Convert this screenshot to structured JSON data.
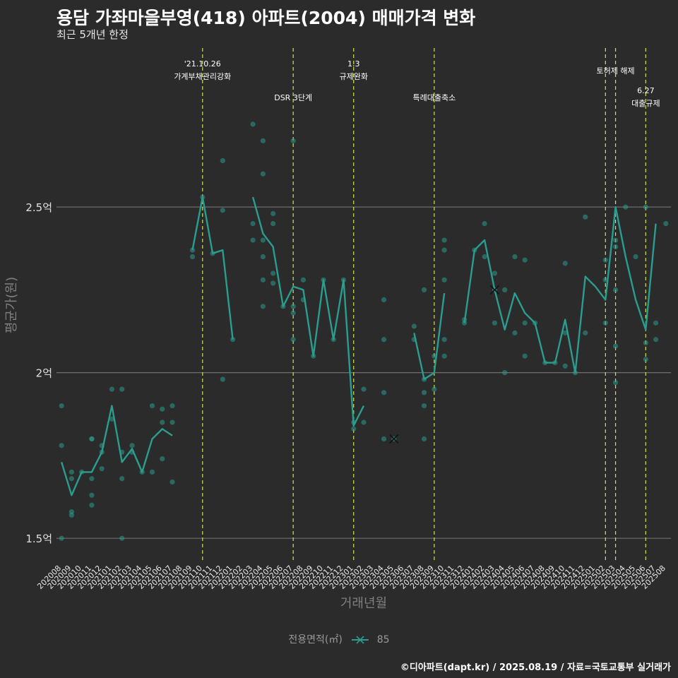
{
  "title": "용담 가좌마을부영(418) 아파트(2004) 매매가격 변화",
  "subtitle": "최근 5개년 한정",
  "caption": "©디아파트(dapt.kr) / 2025.08.19 / 자료=국토교통부 실거래가",
  "colors": {
    "background": "#2b2b2b",
    "series": "#2a9d8f",
    "event_line": "#d4e157",
    "grid": "#6e6e6e",
    "text": "#ffffff",
    "axis_title": "#7f7f7f"
  },
  "chart_data": {
    "type": "line",
    "xlabel": "거래년월",
    "ylabel": "평균가(원)",
    "ylim": [
      1.43,
      2.98
    ],
    "yticks": [
      {
        "value": 1.5,
        "label": "1.5억"
      },
      {
        "value": 2.0,
        "label": "2억"
      },
      {
        "value": 2.5,
        "label": "2.5억"
      }
    ],
    "grid": true,
    "legend": {
      "title": "전용면적(㎡)",
      "position": "bottom",
      "entries": [
        "85"
      ]
    },
    "categories": [
      "202008",
      "202009",
      "202010",
      "202011",
      "202012",
      "202101",
      "202102",
      "202103",
      "202104",
      "202105",
      "202106",
      "202107",
      "202108",
      "202109",
      "202110",
      "202111",
      "202112",
      "202201",
      "202202",
      "202203",
      "202204",
      "202205",
      "202206",
      "202207",
      "202208",
      "202209",
      "202210",
      "202211",
      "202212",
      "202301",
      "202302",
      "202303",
      "202304",
      "202305",
      "202306",
      "202307",
      "202308",
      "202309",
      "202310",
      "202311",
      "202312",
      "202401",
      "202402",
      "202403",
      "202404",
      "202405",
      "202406",
      "202407",
      "202408",
      "202409",
      "202410",
      "202411",
      "202412",
      "202501",
      "202502",
      "202503",
      "202504",
      "202505",
      "202506",
      "202507",
      "202508"
    ],
    "series": [
      {
        "name": "85",
        "values": [
          1.73,
          1.63,
          1.7,
          1.7,
          1.76,
          1.9,
          1.73,
          1.77,
          1.7,
          1.8,
          1.83,
          1.81,
          null,
          2.37,
          2.53,
          2.36,
          2.37,
          2.1,
          null,
          2.53,
          2.42,
          2.38,
          2.2,
          2.26,
          2.25,
          2.05,
          2.28,
          2.1,
          2.28,
          1.84,
          1.9,
          null,
          null,
          1.8,
          null,
          2.12,
          1.98,
          2.0,
          2.24,
          null,
          2.15,
          2.37,
          2.4,
          2.25,
          2.13,
          2.24,
          2.18,
          2.15,
          2.03,
          2.03,
          2.16,
          2.0,
          2.29,
          2.26,
          2.22,
          2.5,
          2.35,
          2.22,
          2.13,
          2.45,
          null
        ],
        "isolated_markers": [
          {
            "x": "202305",
            "y": 1.8
          },
          {
            "x": "202403",
            "y": 2.25
          }
        ]
      }
    ],
    "scatter_points": [
      {
        "x": "202008",
        "y": 1.9
      },
      {
        "x": "202008",
        "y": 1.78
      },
      {
        "x": "202008",
        "y": 1.5
      },
      {
        "x": "202009",
        "y": 1.7
      },
      {
        "x": "202009",
        "y": 1.68
      },
      {
        "x": "202009",
        "y": 1.58
      },
      {
        "x": "202009",
        "y": 1.57
      },
      {
        "x": "202010",
        "y": 1.7
      },
      {
        "x": "202011",
        "y": 1.8
      },
      {
        "x": "202011",
        "y": 1.8
      },
      {
        "x": "202011",
        "y": 1.68
      },
      {
        "x": "202011",
        "y": 1.63
      },
      {
        "x": "202011",
        "y": 1.6
      },
      {
        "x": "202012",
        "y": 1.78
      },
      {
        "x": "202012",
        "y": 1.76
      },
      {
        "x": "202012",
        "y": 1.71
      },
      {
        "x": "202101",
        "y": 1.95
      },
      {
        "x": "202101",
        "y": 1.86
      },
      {
        "x": "202102",
        "y": 1.95
      },
      {
        "x": "202102",
        "y": 1.76
      },
      {
        "x": "202102",
        "y": 1.68
      },
      {
        "x": "202102",
        "y": 1.5
      },
      {
        "x": "202103",
        "y": 1.78
      },
      {
        "x": "202103",
        "y": 1.76
      },
      {
        "x": "202104",
        "y": 1.7
      },
      {
        "x": "202105",
        "y": 1.9
      },
      {
        "x": "202105",
        "y": 1.7
      },
      {
        "x": "202106",
        "y": 1.89
      },
      {
        "x": "202106",
        "y": 1.85
      },
      {
        "x": "202106",
        "y": 1.74
      },
      {
        "x": "202107",
        "y": 1.9
      },
      {
        "x": "202107",
        "y": 1.85
      },
      {
        "x": "202107",
        "y": 1.67
      },
      {
        "x": "202109",
        "y": 2.37
      },
      {
        "x": "202109",
        "y": 2.35
      },
      {
        "x": "202110",
        "y": 2.53
      },
      {
        "x": "202111",
        "y": 2.36
      },
      {
        "x": "202112",
        "y": 2.64
      },
      {
        "x": "202112",
        "y": 2.49
      },
      {
        "x": "202112",
        "y": 1.98
      },
      {
        "x": "202201",
        "y": 2.1
      },
      {
        "x": "202203",
        "y": 2.75
      },
      {
        "x": "202203",
        "y": 2.45
      },
      {
        "x": "202203",
        "y": 2.4
      },
      {
        "x": "202204",
        "y": 2.7
      },
      {
        "x": "202204",
        "y": 2.6
      },
      {
        "x": "202204",
        "y": 2.4
      },
      {
        "x": "202204",
        "y": 2.35
      },
      {
        "x": "202204",
        "y": 2.28
      },
      {
        "x": "202204",
        "y": 2.2
      },
      {
        "x": "202205",
        "y": 2.48
      },
      {
        "x": "202205",
        "y": 2.45
      },
      {
        "x": "202205",
        "y": 2.3
      },
      {
        "x": "202205",
        "y": 2.27
      },
      {
        "x": "202206",
        "y": 2.2
      },
      {
        "x": "202207",
        "y": 2.7
      },
      {
        "x": "202207",
        "y": 2.2
      },
      {
        "x": "202207",
        "y": 2.18
      },
      {
        "x": "202207",
        "y": 2.1
      },
      {
        "x": "202208",
        "y": 2.28
      },
      {
        "x": "202208",
        "y": 2.22
      },
      {
        "x": "202209",
        "y": 2.05
      },
      {
        "x": "202210",
        "y": 2.28
      },
      {
        "x": "202211",
        "y": 2.1
      },
      {
        "x": "202212",
        "y": 2.28
      },
      {
        "x": "202301",
        "y": 1.85
      },
      {
        "x": "202301",
        "y": 1.83
      },
      {
        "x": "202302",
        "y": 1.95
      },
      {
        "x": "202302",
        "y": 1.85
      },
      {
        "x": "202304",
        "y": 2.22
      },
      {
        "x": "202304",
        "y": 2.1
      },
      {
        "x": "202304",
        "y": 1.94
      },
      {
        "x": "202304",
        "y": 1.8
      },
      {
        "x": "202305",
        "y": 1.8
      },
      {
        "x": "202307",
        "y": 2.14
      },
      {
        "x": "202307",
        "y": 2.1
      },
      {
        "x": "202308",
        "y": 2.25
      },
      {
        "x": "202308",
        "y": 1.98
      },
      {
        "x": "202308",
        "y": 1.94
      },
      {
        "x": "202308",
        "y": 1.9
      },
      {
        "x": "202308",
        "y": 1.8
      },
      {
        "x": "202309",
        "y": 2.05
      },
      {
        "x": "202309",
        "y": 1.95
      },
      {
        "x": "202310",
        "y": 2.4
      },
      {
        "x": "202310",
        "y": 2.37
      },
      {
        "x": "202310",
        "y": 2.28
      },
      {
        "x": "202310",
        "y": 2.1
      },
      {
        "x": "202310",
        "y": 2.05
      },
      {
        "x": "202312",
        "y": 2.16
      },
      {
        "x": "202312",
        "y": 2.15
      },
      {
        "x": "202401",
        "y": 2.37
      },
      {
        "x": "202402",
        "y": 2.45
      },
      {
        "x": "202402",
        "y": 2.35
      },
      {
        "x": "202403",
        "y": 2.3
      },
      {
        "x": "202403",
        "y": 2.25
      },
      {
        "x": "202403",
        "y": 2.15
      },
      {
        "x": "202404",
        "y": 2.25
      },
      {
        "x": "202404",
        "y": 2.0
      },
      {
        "x": "202405",
        "y": 2.35
      },
      {
        "x": "202405",
        "y": 2.12
      },
      {
        "x": "202406",
        "y": 2.34
      },
      {
        "x": "202406",
        "y": 2.15
      },
      {
        "x": "202406",
        "y": 2.05
      },
      {
        "x": "202407",
        "y": 2.15
      },
      {
        "x": "202408",
        "y": 2.03
      },
      {
        "x": "202409",
        "y": 2.03
      },
      {
        "x": "202410",
        "y": 2.33
      },
      {
        "x": "202410",
        "y": 2.12
      },
      {
        "x": "202410",
        "y": 2.02
      },
      {
        "x": "202411",
        "y": 2.0
      },
      {
        "x": "202412",
        "y": 2.47
      },
      {
        "x": "202412",
        "y": 2.12
      },
      {
        "x": "202502",
        "y": 2.34
      },
      {
        "x": "202502",
        "y": 2.28
      },
      {
        "x": "202502",
        "y": 2.15
      },
      {
        "x": "202503",
        "y": 2.4
      },
      {
        "x": "202503",
        "y": 2.38
      },
      {
        "x": "202503",
        "y": 2.25
      },
      {
        "x": "202503",
        "y": 2.08
      },
      {
        "x": "202503",
        "y": 1.97
      },
      {
        "x": "202504",
        "y": 2.5
      },
      {
        "x": "202505",
        "y": 2.35
      },
      {
        "x": "202506",
        "y": 2.5
      },
      {
        "x": "202506",
        "y": 2.09
      },
      {
        "x": "202506",
        "y": 2.04
      },
      {
        "x": "202507",
        "y": 2.15
      },
      {
        "x": "202507",
        "y": 2.1
      },
      {
        "x": "202508",
        "y": 2.45
      }
    ],
    "events": [
      {
        "x": "202110",
        "lines": [
          "'21.10.26",
          "가계부채관리강화"
        ],
        "row": 0
      },
      {
        "x": "202207",
        "lines": [
          "DSR 3단계"
        ],
        "row": 1
      },
      {
        "x": "202301",
        "lines": [
          "1.3",
          "규제완화"
        ],
        "row": 0
      },
      {
        "x": "202309",
        "lines": [
          "특례대출축소"
        ],
        "row": 1
      },
      {
        "x": "202502",
        "lines": [],
        "row": 0
      },
      {
        "x": "202503",
        "lines": [
          "토허제 해제"
        ],
        "row": 0
      },
      {
        "x": "202506",
        "lines": [
          "6.27",
          "대출규제"
        ],
        "row": 1
      }
    ]
  }
}
